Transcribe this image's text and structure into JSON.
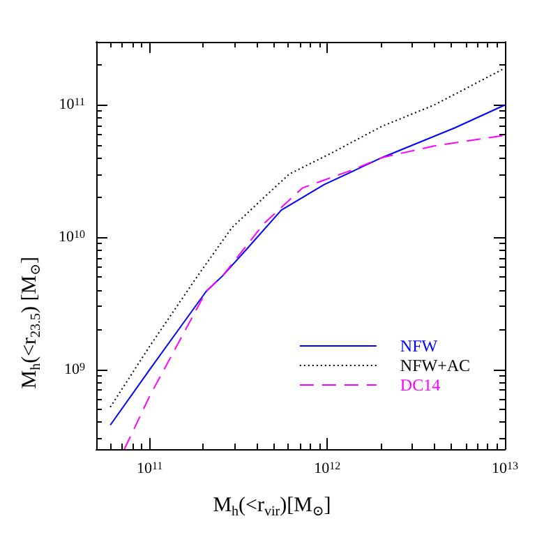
{
  "chart_data": {
    "type": "line",
    "xlabel": "M$_{h}$(<r$_{vir}$)[M$_{⊙}$]",
    "ylabel": "M$_{h}$(<r$_{23.5}$) [M$_{⊙}$]",
    "log": "xy",
    "grid": false,
    "legend": "bottom right",
    "marker": "none",
    "xlim": [
      50000000000.0,
      10000000000000.0
    ],
    "ylim": [
      250000000.0,
      300000000000.0
    ],
    "xticks": [
      {
        "value": 60000000000.0,
        "label": null
      },
      {
        "value": 70000000000.0,
        "label": null
      },
      {
        "value": 80000000000.0,
        "label": null
      },
      {
        "value": 90000000000.0,
        "label": null
      },
      {
        "value": 100000000000.0,
        "label": "10$^{11}$"
      },
      {
        "value": 200000000000.0,
        "label": null
      },
      {
        "value": 300000000000.0,
        "label": null
      },
      {
        "value": 400000000000.0,
        "label": null
      },
      {
        "value": 500000000000.0,
        "label": null
      },
      {
        "value": 600000000000.0,
        "label": null
      },
      {
        "value": 700000000000.0,
        "label": null
      },
      {
        "value": 800000000000.0,
        "label": null
      },
      {
        "value": 900000000000.0,
        "label": null
      },
      {
        "value": 1000000000000.0,
        "label": "10$^{12}$"
      },
      {
        "value": 2000000000000.0,
        "label": null
      },
      {
        "value": 3000000000000.0,
        "label": null
      },
      {
        "value": 4000000000000.0,
        "label": null
      },
      {
        "value": 5000000000000.0,
        "label": null
      },
      {
        "value": 6000000000000.0,
        "label": null
      },
      {
        "value": 7000000000000.0,
        "label": null
      },
      {
        "value": 8000000000000.0,
        "label": null
      },
      {
        "value": 9000000000000.0,
        "label": null
      },
      {
        "value": 10000000000000.0,
        "label": "10$^{13}$"
      }
    ],
    "yticks": [
      {
        "value": 300000000.0,
        "label": null
      },
      {
        "value": 400000000.0,
        "label": null
      },
      {
        "value": 500000000.0,
        "label": null
      },
      {
        "value": 600000000.0,
        "label": null
      },
      {
        "value": 700000000.0,
        "label": null
      },
      {
        "value": 800000000.0,
        "label": null
      },
      {
        "value": 900000000.0,
        "label": null
      },
      {
        "value": 1000000000.0,
        "label": "10$^{9}$"
      },
      {
        "value": 2000000000.0,
        "label": null
      },
      {
        "value": 3000000000.0,
        "label": null
      },
      {
        "value": 4000000000.0,
        "label": null
      },
      {
        "value": 5000000000.0,
        "label": null
      },
      {
        "value": 6000000000.0,
        "label": null
      },
      {
        "value": 7000000000.0,
        "label": null
      },
      {
        "value": 8000000000.0,
        "label": null
      },
      {
        "value": 9000000000.0,
        "label": null
      },
      {
        "value": 10000000000.0,
        "label": "10$^{10}$"
      },
      {
        "value": 20000000000.0,
        "label": null
      },
      {
        "value": 30000000000.0,
        "label": null
      },
      {
        "value": 40000000000.0,
        "label": null
      },
      {
        "value": 50000000000.0,
        "label": null
      },
      {
        "value": 60000000000.0,
        "label": null
      },
      {
        "value": 70000000000.0,
        "label": null
      },
      {
        "value": 80000000000.0,
        "label": null
      },
      {
        "value": 90000000000.0,
        "label": null
      },
      {
        "value": 100000000000.0,
        "label": "10$^{11}$"
      },
      {
        "value": 200000000000.0,
        "label": null
      },
      {
        "value": 300000000000.0,
        "label": null
      }
    ],
    "series": [
      {
        "name": "NFW",
        "color": "#0000ff",
        "line_style": "solid",
        "x": [
          60000000000.0,
          100000000000.0,
          208000000000.0,
          257000000000.0,
          348000000000.0,
          550000000000.0,
          960000000000.0,
          2030000000000.0,
          5200000000000.0,
          10000000000000.0
        ],
        "values": [
          380000000.0,
          1000000000.0,
          3900000000.0,
          5100000000.0,
          8000000000.0,
          16000000000.0,
          25000000000.0,
          40000000000.0,
          67000000000.0,
          100000000000.0
        ]
      },
      {
        "name": "NFW+AC",
        "color": "#000000",
        "line_style": "dotted",
        "x": [
          60000000000.0,
          100000000000.0,
          186000000000.0,
          290000000000.0,
          440000000000.0,
          610000000000.0,
          1080000000000.0,
          2030000000000.0,
          4000000000000.0,
          10000000000000.0
        ],
        "values": [
          520000000.0,
          1500000000.0,
          5100000000.0,
          11800000000.0,
          20000000000.0,
          30000000000.0,
          44000000000.0,
          69000000000.0,
          100000000000.0,
          190000000000.0
        ]
      },
      {
        "name": "DC14",
        "color": "#ff00ff",
        "line_style": "dashed",
        "x": [
          72000000000.0,
          100000000000.0,
          208000000000.0,
          257000000000.0,
          440000000000.0,
          725000000000.0,
          1360000000000.0,
          2030000000000.0,
          4000000000000.0,
          10000000000000.0
        ],
        "values": [
          250000000.0,
          630000000.0,
          3900000000.0,
          5100000000.0,
          12700000000.0,
          23600000000.0,
          32000000000.0,
          40000000000.0,
          49000000000.0,
          59000000000.0
        ]
      }
    ]
  }
}
